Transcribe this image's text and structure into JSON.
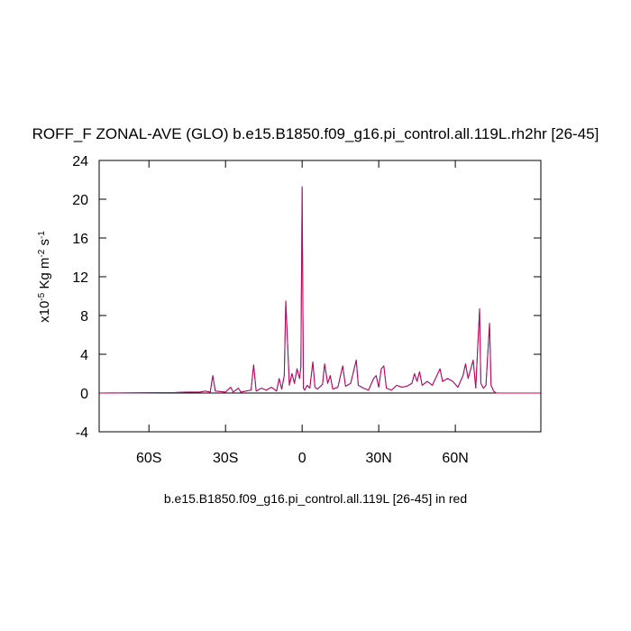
{
  "chart_data": {
    "type": "line",
    "title": "ROFF_F ZONAL-AVE (GLO) b.e15.B1850.f09_g16.pi_control.all.119L.rh2hr [26-45]",
    "xlabel": "b.e15.B1850.f09_g16.pi_control.all.119L [26-45] in red",
    "ylabel": [
      "x10",
      "-5",
      " Kg m",
      "-2",
      " s",
      "-1"
    ],
    "xlim": [
      -79.5,
      93.5
    ],
    "xticks": [
      {
        "value": -60,
        "label": "60S"
      },
      {
        "value": -30,
        "label": "30S"
      },
      0,
      {
        "value": 30,
        "label": "30N"
      },
      {
        "value": 60,
        "label": "60N"
      }
    ],
    "ylim": [
      -4,
      24
    ],
    "yticks": [
      -4,
      0,
      4,
      8,
      12,
      16,
      20,
      24
    ],
    "x": [
      -79.5,
      -50,
      -45,
      -40,
      -38,
      -36,
      -35,
      -34,
      -30,
      -28,
      -27,
      -25,
      -24,
      -20,
      -19,
      -18,
      -16,
      -14,
      -12,
      -10,
      -9,
      -8,
      -7,
      -6.4,
      -5,
      -4,
      -3,
      -2,
      -1,
      -0.5,
      0,
      0.5,
      1,
      2,
      3,
      4.2,
      5,
      6,
      8,
      8.8,
      10,
      11,
      12,
      14,
      15.9,
      17,
      19,
      21.2,
      22,
      24,
      26,
      28,
      29,
      30,
      31,
      32,
      33,
      35,
      37,
      39,
      41,
      43,
      44,
      45,
      46,
      47,
      49,
      51,
      54,
      55,
      57,
      59,
      61,
      63,
      64,
      65,
      67,
      68,
      69.5,
      70,
      71,
      72,
      73.4,
      74,
      75,
      76,
      93.5
    ],
    "series": [
      {
        "color": "#3a4cff",
        "values": [
          0,
          0.05,
          0.1,
          0.1,
          0.2,
          0.1,
          1.8,
          0.2,
          0.1,
          0.6,
          0.1,
          0.5,
          0.1,
          0.3,
          2.9,
          0.2,
          0.5,
          0.3,
          0.6,
          0.2,
          1.5,
          0.4,
          1.8,
          9.5,
          0.8,
          2,
          1,
          2.5,
          1.5,
          2.7,
          21.3,
          0.5,
          0.3,
          0.8,
          0.5,
          3.2,
          0.6,
          0.4,
          0.9,
          3,
          1,
          1.8,
          0.4,
          0.6,
          2.8,
          0.7,
          1,
          3.4,
          0.8,
          0.5,
          0.3,
          1.5,
          1.8,
          0.6,
          2.5,
          2.8,
          0.5,
          0.3,
          0.8,
          0.6,
          0.7,
          1,
          2,
          1.2,
          2.2,
          0.8,
          1.2,
          0.8,
          2.5,
          1.2,
          1.5,
          1.2,
          0.6,
          1.8,
          3,
          1.5,
          3.4,
          0.5,
          8.7,
          1,
          0.5,
          0.8,
          7.2,
          0.8,
          0.2,
          0,
          0
        ]
      },
      {
        "color": "#d4003c",
        "values": [
          0,
          0.05,
          0.1,
          0.1,
          0.2,
          0.1,
          1.8,
          0.2,
          0.1,
          0.6,
          0.1,
          0.5,
          0.1,
          0.3,
          2.9,
          0.2,
          0.5,
          0.3,
          0.6,
          0.2,
          1.5,
          0.4,
          1.8,
          9.5,
          0.8,
          2,
          1,
          2.5,
          1.5,
          2.7,
          21.2,
          0.5,
          0.3,
          0.8,
          0.5,
          3.2,
          0.6,
          0.4,
          0.9,
          3,
          1,
          1.8,
          0.4,
          0.6,
          2.8,
          0.7,
          1,
          3.4,
          0.8,
          0.5,
          0.3,
          1.5,
          1.8,
          0.6,
          2.5,
          2.8,
          0.5,
          0.3,
          0.8,
          0.6,
          0.7,
          1,
          2,
          1.2,
          2.2,
          0.8,
          1.2,
          0.8,
          2.5,
          1.2,
          1.5,
          1.2,
          0.6,
          1.8,
          3,
          1.5,
          3.4,
          0.5,
          8.7,
          1,
          0.5,
          0.8,
          7.2,
          0.8,
          0.2,
          0,
          0
        ]
      }
    ]
  }
}
